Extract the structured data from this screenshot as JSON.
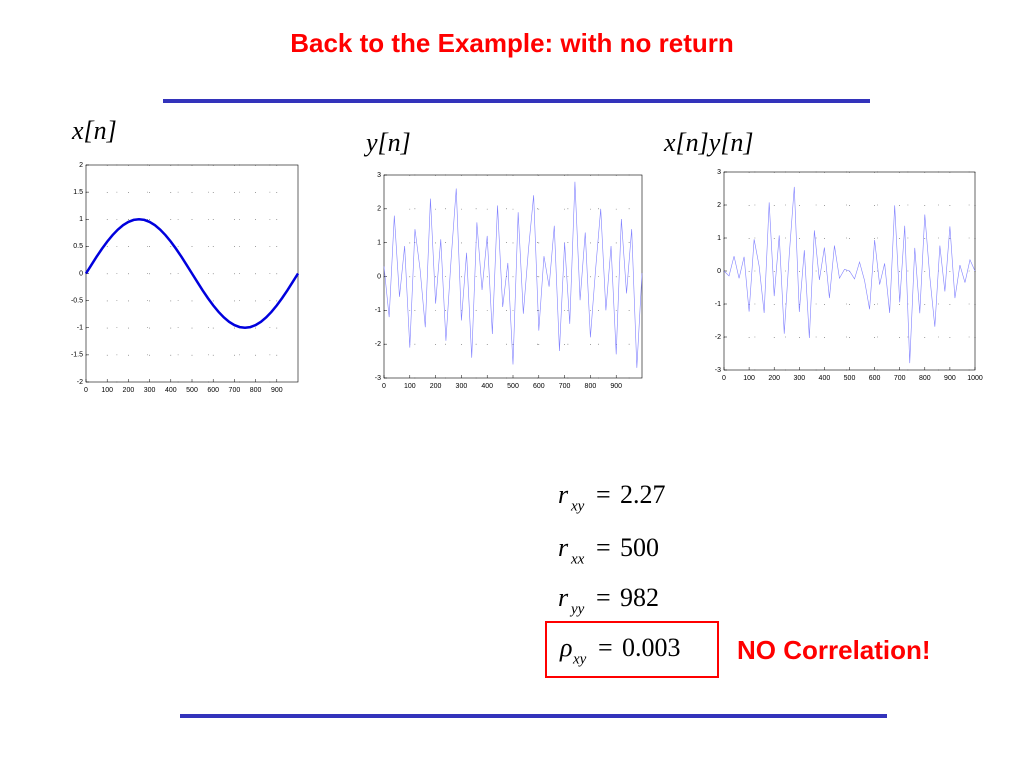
{
  "slide": {
    "title": "Back to the Example: with no return",
    "equations": [
      {
        "symbol": "r",
        "subscript": "xy",
        "relation": "=",
        "value": "2.27"
      },
      {
        "symbol": "r",
        "subscript": "xx",
        "relation": "=",
        "value": "500"
      },
      {
        "symbol": "r",
        "subscript": "yy",
        "relation": "=",
        "value": "982"
      },
      {
        "symbol": "ρ",
        "subscript": "xy",
        "relation": "=",
        "value": "0.003"
      }
    ],
    "annotation": "NO Correlation!"
  },
  "chart_data": [
    {
      "type": "line",
      "title": "x[n]",
      "x": [
        0,
        25,
        50,
        75,
        100,
        125,
        150,
        175,
        200,
        225,
        250,
        275,
        300,
        325,
        350,
        375,
        400,
        425,
        450,
        475,
        500,
        525,
        550,
        575,
        600,
        625,
        650,
        675,
        700,
        725,
        750,
        775,
        800,
        825,
        850,
        875,
        900,
        925,
        950,
        975,
        1000
      ],
      "series": [
        {
          "color": "#0000dd",
          "values": [
            0,
            0.156,
            0.309,
            0.454,
            0.588,
            0.707,
            0.809,
            0.891,
            0.951,
            0.988,
            1,
            0.988,
            0.951,
            0.891,
            0.809,
            0.707,
            0.588,
            0.454,
            0.309,
            0.156,
            0,
            -0.156,
            -0.309,
            -0.454,
            -0.588,
            -0.707,
            -0.809,
            -0.891,
            -0.951,
            -0.988,
            -1,
            -0.988,
            -0.951,
            -0.891,
            -0.809,
            -0.707,
            -0.588,
            -0.454,
            -0.309,
            -0.156,
            0
          ]
        }
      ],
      "xlim": [
        0,
        1000
      ],
      "xticks": [
        0,
        100,
        200,
        300,
        400,
        500,
        600,
        700,
        800,
        900
      ],
      "ylim": [
        -2,
        2
      ],
      "yticks": [
        -2,
        -1.5,
        -1,
        -0.5,
        0,
        0.5,
        1,
        1.5,
        2
      ],
      "grid": true
    },
    {
      "type": "line",
      "title": "y[n]",
      "x": [
        0,
        20,
        40,
        60,
        80,
        100,
        120,
        140,
        160,
        180,
        200,
        220,
        240,
        260,
        280,
        300,
        320,
        340,
        360,
        380,
        400,
        420,
        440,
        460,
        480,
        500,
        520,
        540,
        560,
        580,
        600,
        620,
        640,
        660,
        680,
        700,
        720,
        740,
        760,
        780,
        800,
        820,
        840,
        860,
        880,
        900,
        920,
        940,
        960,
        980,
        1000
      ],
      "series": [
        {
          "color": "#8080ff",
          "values": [
            0.3,
            -1.2,
            1.8,
            -0.6,
            0.9,
            -2.1,
            1.4,
            0.2,
            -1.5,
            2.3,
            -0.8,
            1.1,
            -1.9,
            0.5,
            2.6,
            -1.3,
            0.7,
            -2.4,
            1.6,
            -0.4,
            1.2,
            -1.7,
            2.1,
            -0.9,
            0.4,
            -2.6,
            1.9,
            -1.1,
            0.8,
            2.4,
            -1.6,
            0.6,
            -0.3,
            1.5,
            -2.2,
            1.0,
            -1.4,
            2.8,
            -0.7,
            1.3,
            -1.8,
            0.2,
            2.0,
            -1.0,
            0.9,
            -2.3,
            1.7,
            -0.5,
            1.4,
            -2.7,
            0.1
          ]
        }
      ],
      "xlim": [
        0,
        1000
      ],
      "xticks": [
        0,
        100,
        200,
        300,
        400,
        500,
        600,
        700,
        800,
        900
      ],
      "ylim": [
        -3,
        3
      ],
      "yticks": [
        -3,
        -2,
        -1,
        0,
        1,
        2,
        3
      ],
      "grid": true
    },
    {
      "type": "line",
      "title": "x[n]y[n]",
      "x": [
        0,
        20,
        40,
        60,
        80,
        100,
        120,
        140,
        160,
        180,
        200,
        220,
        240,
        260,
        280,
        300,
        320,
        340,
        360,
        380,
        400,
        420,
        440,
        460,
        480,
        500,
        520,
        540,
        560,
        580,
        600,
        620,
        640,
        660,
        680,
        700,
        720,
        740,
        760,
        780,
        800,
        820,
        840,
        860,
        880,
        900,
        920,
        940,
        960,
        980,
        1000
      ],
      "series": [
        {
          "color": "#8080ff",
          "values": [
            0,
            -0.15,
            0.45,
            -0.22,
            0.43,
            -1.23,
            0.96,
            0.15,
            -1.27,
            2.08,
            -0.76,
            1.08,
            -1.9,
            0.5,
            2.55,
            -1.24,
            0.63,
            -2.03,
            1.23,
            -0.27,
            0.71,
            -0.82,
            0.77,
            -0.22,
            0.05,
            0,
            -0.24,
            0.27,
            -0.29,
            -1.16,
            0.94,
            -0.41,
            0.23,
            -1.27,
            1.99,
            -0.95,
            1.37,
            -2.79,
            0.7,
            -1.28,
            1.71,
            -0.18,
            -1.69,
            0.77,
            -0.62,
            1.35,
            -0.82,
            0.18,
            -0.35,
            0.34,
            0
          ]
        }
      ],
      "xlim": [
        0,
        1000
      ],
      "xticks": [
        0,
        100,
        200,
        300,
        400,
        500,
        600,
        700,
        800,
        900,
        1000
      ],
      "ylim": [
        -3,
        3
      ],
      "yticks": [
        -3,
        -2,
        -1,
        0,
        1,
        2,
        3
      ],
      "grid": true
    }
  ]
}
